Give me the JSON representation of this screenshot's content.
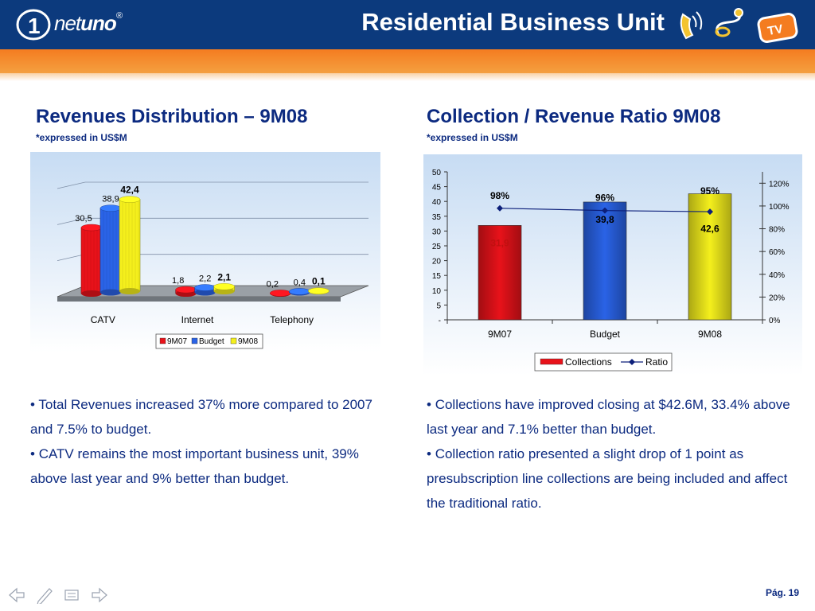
{
  "header": {
    "logo_mark": "1",
    "logo_light": "net",
    "logo_bold": "uno",
    "logo_reg": "®",
    "title": "Residential Business Unit",
    "icons": [
      "telephone-icon",
      "internet-icon",
      "tv-icon"
    ],
    "tv_label": "TV"
  },
  "left": {
    "title": "Revenues Distribution – 9M08",
    "subtitle": "*expressed in US$M",
    "bullets": [
      "Total Revenues increased 37% more compared to 2007 and 7.5% to budget.",
      "CATV remains the most important business unit, 39% above last year and 9% better than budget."
    ]
  },
  "right": {
    "title": "Collection / Revenue Ratio 9M08",
    "subtitle": "*expressed in US$M",
    "bullets": [
      "Collections have improved closing at $42.6M, 33.4% above last year and 7.1% better than budget.",
      "Collection ratio presented a slight drop of 1 point as presubscription line collections are being included and affect the traditional ratio."
    ]
  },
  "chart_data": [
    {
      "type": "bar",
      "categories": [
        "CATV",
        "Internet",
        "Telephony"
      ],
      "series": [
        {
          "name": "9M07",
          "values": [
            30.5,
            1.8,
            0.2
          ],
          "labels": [
            "30,5",
            "1,8",
            "0,2"
          ],
          "color": "#e8121a"
        },
        {
          "name": "Budget",
          "values": [
            38.9,
            2.2,
            0.4
          ],
          "labels": [
            "38,9",
            "2,2",
            "0,4"
          ],
          "color": "#2a63e6"
        },
        {
          "name": "9M08",
          "values": [
            42.4,
            2.1,
            0.1
          ],
          "labels": [
            "42,4",
            "2,1",
            "0,1"
          ],
          "color": "#f4ef1c"
        }
      ],
      "ylim": [
        0,
        50
      ],
      "legend": "bottom",
      "grid": true
    },
    {
      "type": "bar",
      "categories": [
        "9M07",
        "Budget",
        "9M08"
      ],
      "series": [
        {
          "name": "Collections",
          "values": [
            31.9,
            39.8,
            42.6
          ],
          "labels": [
            "31,9",
            "39,8",
            "42,6"
          ],
          "colors": [
            "#e8121a",
            "#2a63e6",
            "#f4ef1c"
          ]
        },
        {
          "name": "Ratio",
          "type": "line",
          "axis": "right",
          "values": [
            98,
            96,
            95
          ],
          "labels": [
            "98%",
            "96%",
            "95%"
          ],
          "color": "#0c1f7a"
        }
      ],
      "y_left": {
        "range": [
          0,
          50
        ],
        "ticks": [
          "-",
          "5",
          "10",
          "15",
          "20",
          "25",
          "30",
          "35",
          "40",
          "45",
          "50"
        ]
      },
      "y_right": {
        "range": [
          0,
          130
        ],
        "ticks": [
          "0%",
          "20%",
          "40%",
          "60%",
          "80%",
          "100%",
          "120%"
        ]
      },
      "legend": "bottom"
    }
  ],
  "footer": {
    "page": "Pág. 19"
  }
}
